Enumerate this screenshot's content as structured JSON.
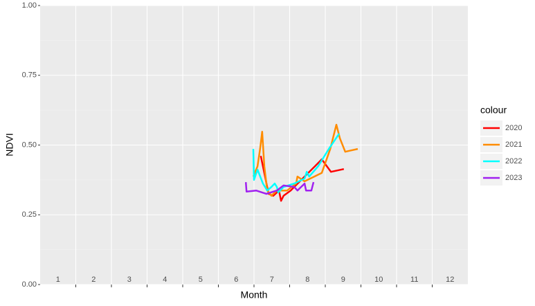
{
  "chart_data": {
    "type": "line",
    "x_label": "Month",
    "y_label": "NDVI",
    "xlim": [
      0.5,
      12.5
    ],
    "xticks": [
      1,
      2,
      3,
      4,
      5,
      6,
      7,
      8,
      9,
      10,
      11,
      12
    ],
    "ylim": [
      0,
      1
    ],
    "yticks": [
      {
        "value": 0,
        "label": "0.00"
      },
      {
        "value": 0.25,
        "label": "0.25"
      },
      {
        "value": 0.5,
        "label": "0.50"
      },
      {
        "value": 0.75,
        "label": "0.75"
      },
      {
        "value": 1,
        "label": "1.00"
      }
    ],
    "grid": true,
    "legend_title": "colour",
    "legend_position": "right",
    "series": [
      {
        "name": "2020",
        "color": "#ff0000",
        "x": [
          6.69,
          6.77,
          6.91,
          7.04,
          7.2,
          7.26,
          7.33,
          7.53,
          7.92,
          8.21,
          8.4,
          8.66,
          9.02
        ],
        "values": [
          0.461,
          0.412,
          0.325,
          0.318,
          0.337,
          0.3,
          0.318,
          0.337,
          0.387,
          0.424,
          0.449,
          0.404,
          0.414
        ]
      },
      {
        "name": "2021",
        "color": "#ff8c00",
        "x": [
          6.48,
          6.6,
          6.67,
          6.73,
          6.79,
          6.87,
          6.99,
          7.14,
          7.43,
          7.68,
          7.72,
          7.92,
          8.4,
          8.64,
          8.81,
          8.91,
          9.06,
          9.41
        ],
        "values": [
          0.387,
          0.424,
          0.486,
          0.548,
          0.424,
          0.337,
          0.318,
          0.337,
          0.337,
          0.362,
          0.387,
          0.37,
          0.4,
          0.486,
          0.573,
          0.524,
          0.476,
          0.486
        ]
      },
      {
        "name": "2022",
        "color": "#00ffff",
        "x": [
          6.48,
          6.5,
          6.6,
          6.75,
          6.87,
          6.99,
          7.08,
          7.14,
          7.18,
          7.33,
          7.63,
          7.92,
          7.98,
          8.05,
          8.3,
          8.6,
          8.89
        ],
        "values": [
          0.486,
          0.375,
          0.412,
          0.362,
          0.337,
          0.35,
          0.362,
          0.35,
          0.33,
          0.35,
          0.362,
          0.38,
          0.404,
          0.387,
          0.424,
          0.486,
          0.541
        ]
      },
      {
        "name": "2023",
        "color": "#a020f0",
        "x": [
          6.27,
          6.29,
          6.56,
          6.85,
          7.14,
          7.33,
          7.63,
          7.72,
          7.92,
          7.96,
          8.11,
          8.17
        ],
        "values": [
          0.367,
          0.333,
          0.337,
          0.325,
          0.337,
          0.355,
          0.35,
          0.337,
          0.362,
          0.337,
          0.337,
          0.367
        ]
      }
    ]
  }
}
